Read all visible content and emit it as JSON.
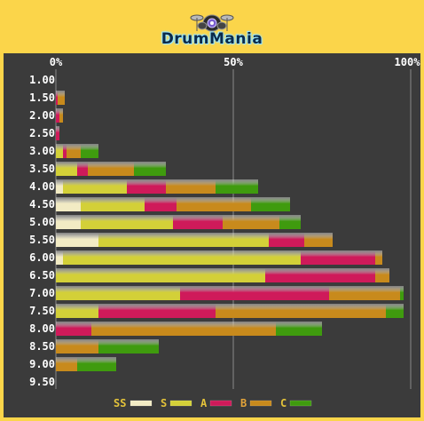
{
  "app": {
    "title": "DrumMania"
  },
  "colors": {
    "background": "#fbd54a",
    "panel": "#3b3b3b",
    "SS": "#f2ebc4",
    "S": "#d3d038",
    "A": "#cf1a5a",
    "B": "#c88a1c",
    "C": "#3f9b0e"
  },
  "chart_data": {
    "type": "bar",
    "orientation": "horizontal",
    "stacked": true,
    "xlim": [
      0,
      100
    ],
    "x_ticks": [
      "0%",
      "50%",
      "100%"
    ],
    "categories": [
      "1.00",
      "1.50",
      "2.00",
      "2.50",
      "3.00",
      "3.50",
      "4.00",
      "4.50",
      "5.00",
      "5.50",
      "6.00",
      "6.50",
      "7.00",
      "7.50",
      "8.00",
      "8.50",
      "9.00",
      "9.50"
    ],
    "series": [
      {
        "name": "SS",
        "values": [
          0,
          0,
          0,
          0,
          0,
          0,
          2,
          7,
          7,
          12,
          2,
          0,
          0,
          0,
          0,
          0,
          0,
          0
        ]
      },
      {
        "name": "S",
        "values": [
          0,
          0,
          0,
          0,
          2,
          6,
          18,
          18,
          26,
          48,
          67,
          59,
          35,
          12,
          0,
          0,
          0,
          0
        ]
      },
      {
        "name": "A",
        "values": [
          0,
          0.5,
          1,
          1,
          1,
          3,
          11,
          9,
          14,
          10,
          21,
          31,
          42,
          33,
          10,
          0,
          0,
          0
        ]
      },
      {
        "name": "B",
        "values": [
          0,
          2,
          1,
          0,
          4,
          13,
          14,
          21,
          16,
          8,
          2,
          4,
          20,
          48,
          52,
          12,
          6,
          0
        ]
      },
      {
        "name": "C",
        "values": [
          0,
          0,
          0,
          0,
          5,
          9,
          12,
          11,
          6,
          0,
          0,
          0,
          1,
          5,
          13,
          17,
          11,
          0
        ]
      }
    ],
    "legend": [
      "SS",
      "S",
      "A",
      "B",
      "C"
    ],
    "legend_position": "bottom",
    "grid": true
  }
}
